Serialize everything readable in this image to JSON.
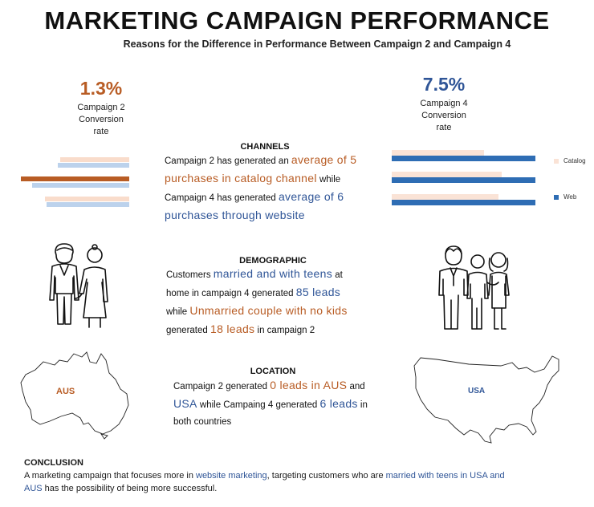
{
  "title": "MARKETING CAMPAIGN PERFORMANCE",
  "subtitle": "Reasons for the Difference in Performance Between Campaign 2 and Campaign 4",
  "colors": {
    "orange": "#b85c24",
    "blue": "#2f5597",
    "light_orange": "#f9dccb",
    "light_blue": "#bcd2ec",
    "web_blue": "#2e6db4",
    "catalog_peach": "#fae3d6"
  },
  "kpi_left": {
    "value": "1.3%",
    "label_lines": [
      "Campaign 2",
      "Conversion",
      "rate"
    ]
  },
  "kpi_right": {
    "value": "7.5%",
    "label_lines": [
      "Campaign 4",
      "Conversion",
      "rate"
    ]
  },
  "channels": {
    "heading": "CHANNELS",
    "t1": "Campaign 2 has generated an ",
    "h1": "average of 5 purchases in catalog channel",
    "t2": " while Campaign 4 has generated ",
    "h2": "average of 6 purchases through website"
  },
  "demographic": {
    "heading": "DEMOGRAPHIC",
    "t1": "Customers ",
    "h1": "married and with teens",
    "t2": " at home in campaign 4 generated ",
    "h2": "85 leads",
    "t3": " while ",
    "h3": "Unmarried couple with no kids",
    "t4": " generated ",
    "h4": "18 leads",
    "t5": " in campaign 2"
  },
  "location": {
    "heading": "LOCATION",
    "t1": "Campaign 2 generated ",
    "h1": "0 leads in AUS",
    "t2": " and ",
    "h2": "USA",
    "t3": " while Campaing 4 generated ",
    "h3": "6 leads",
    "t4": " in both countries"
  },
  "maps": {
    "left_label": "AUS",
    "right_label": "USA"
  },
  "legend": {
    "catalog": "Catalog",
    "web": "Web"
  },
  "conclusion": {
    "heading": "CONCLUSION",
    "t1": "A marketing campaign that focuses more in ",
    "h1": "website marketing",
    "t2": ", targeting customers who are ",
    "h2": "married with teens in USA and AUS",
    "t3": " has the possibility of being more successful."
  },
  "icons": {
    "couple": "couple-icon",
    "family": "family-icon",
    "aus_map": "australia-map-icon",
    "usa_map": "usa-map-icon"
  }
}
